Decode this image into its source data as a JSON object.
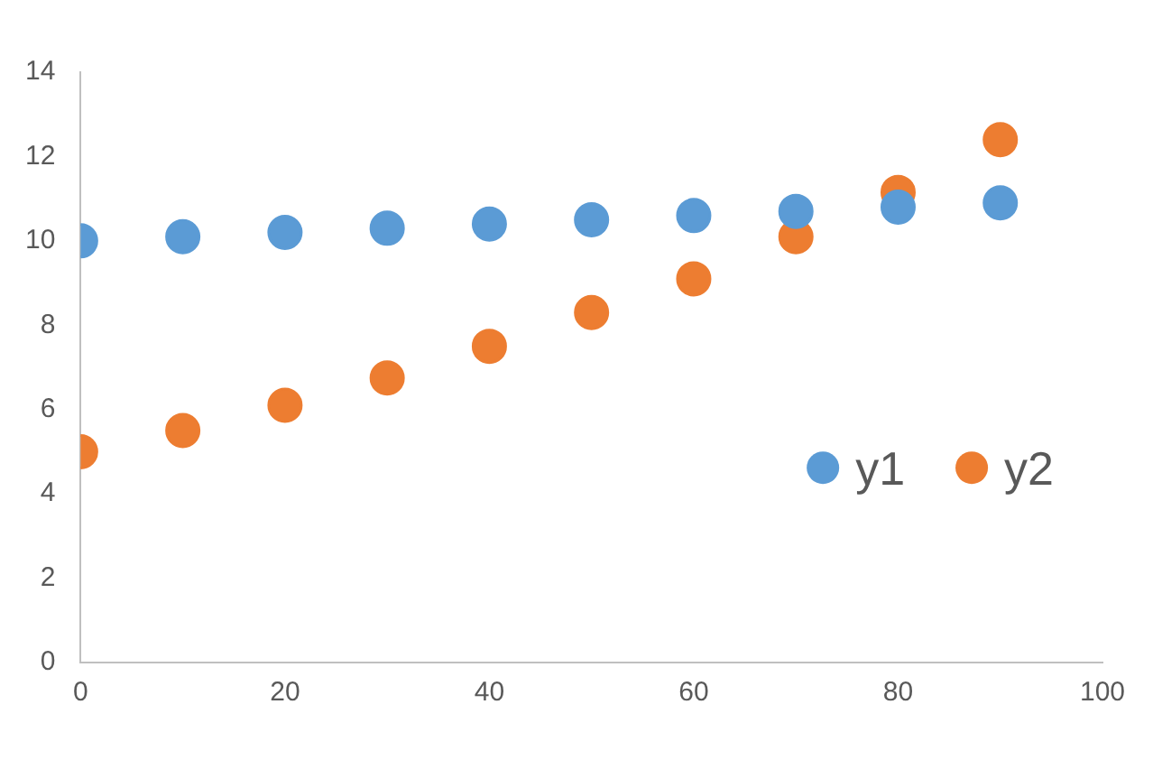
{
  "chart_data": {
    "type": "scatter",
    "x": [
      0,
      10,
      20,
      30,
      40,
      50,
      60,
      70,
      80,
      90
    ],
    "series": [
      {
        "name": "y1",
        "color": "#5b9bd5",
        "values": [
          10,
          10.1,
          10.2,
          10.3,
          10.4,
          10.5,
          10.6,
          10.7,
          10.8,
          10.9
        ]
      },
      {
        "name": "y2",
        "color": "#ed7d31",
        "values": [
          5,
          5.5,
          6.1,
          6.75,
          7.5,
          8.3,
          9.1,
          10.1,
          11.15,
          12.4
        ]
      }
    ],
    "xlim": [
      0,
      100
    ],
    "xticks": [
      0,
      20,
      40,
      60,
      80,
      100
    ],
    "ylim": [
      0,
      14
    ],
    "yticks": [
      0,
      2,
      4,
      6,
      8,
      10,
      12,
      14
    ],
    "grid": false,
    "legend": "right",
    "marker": "circle"
  }
}
